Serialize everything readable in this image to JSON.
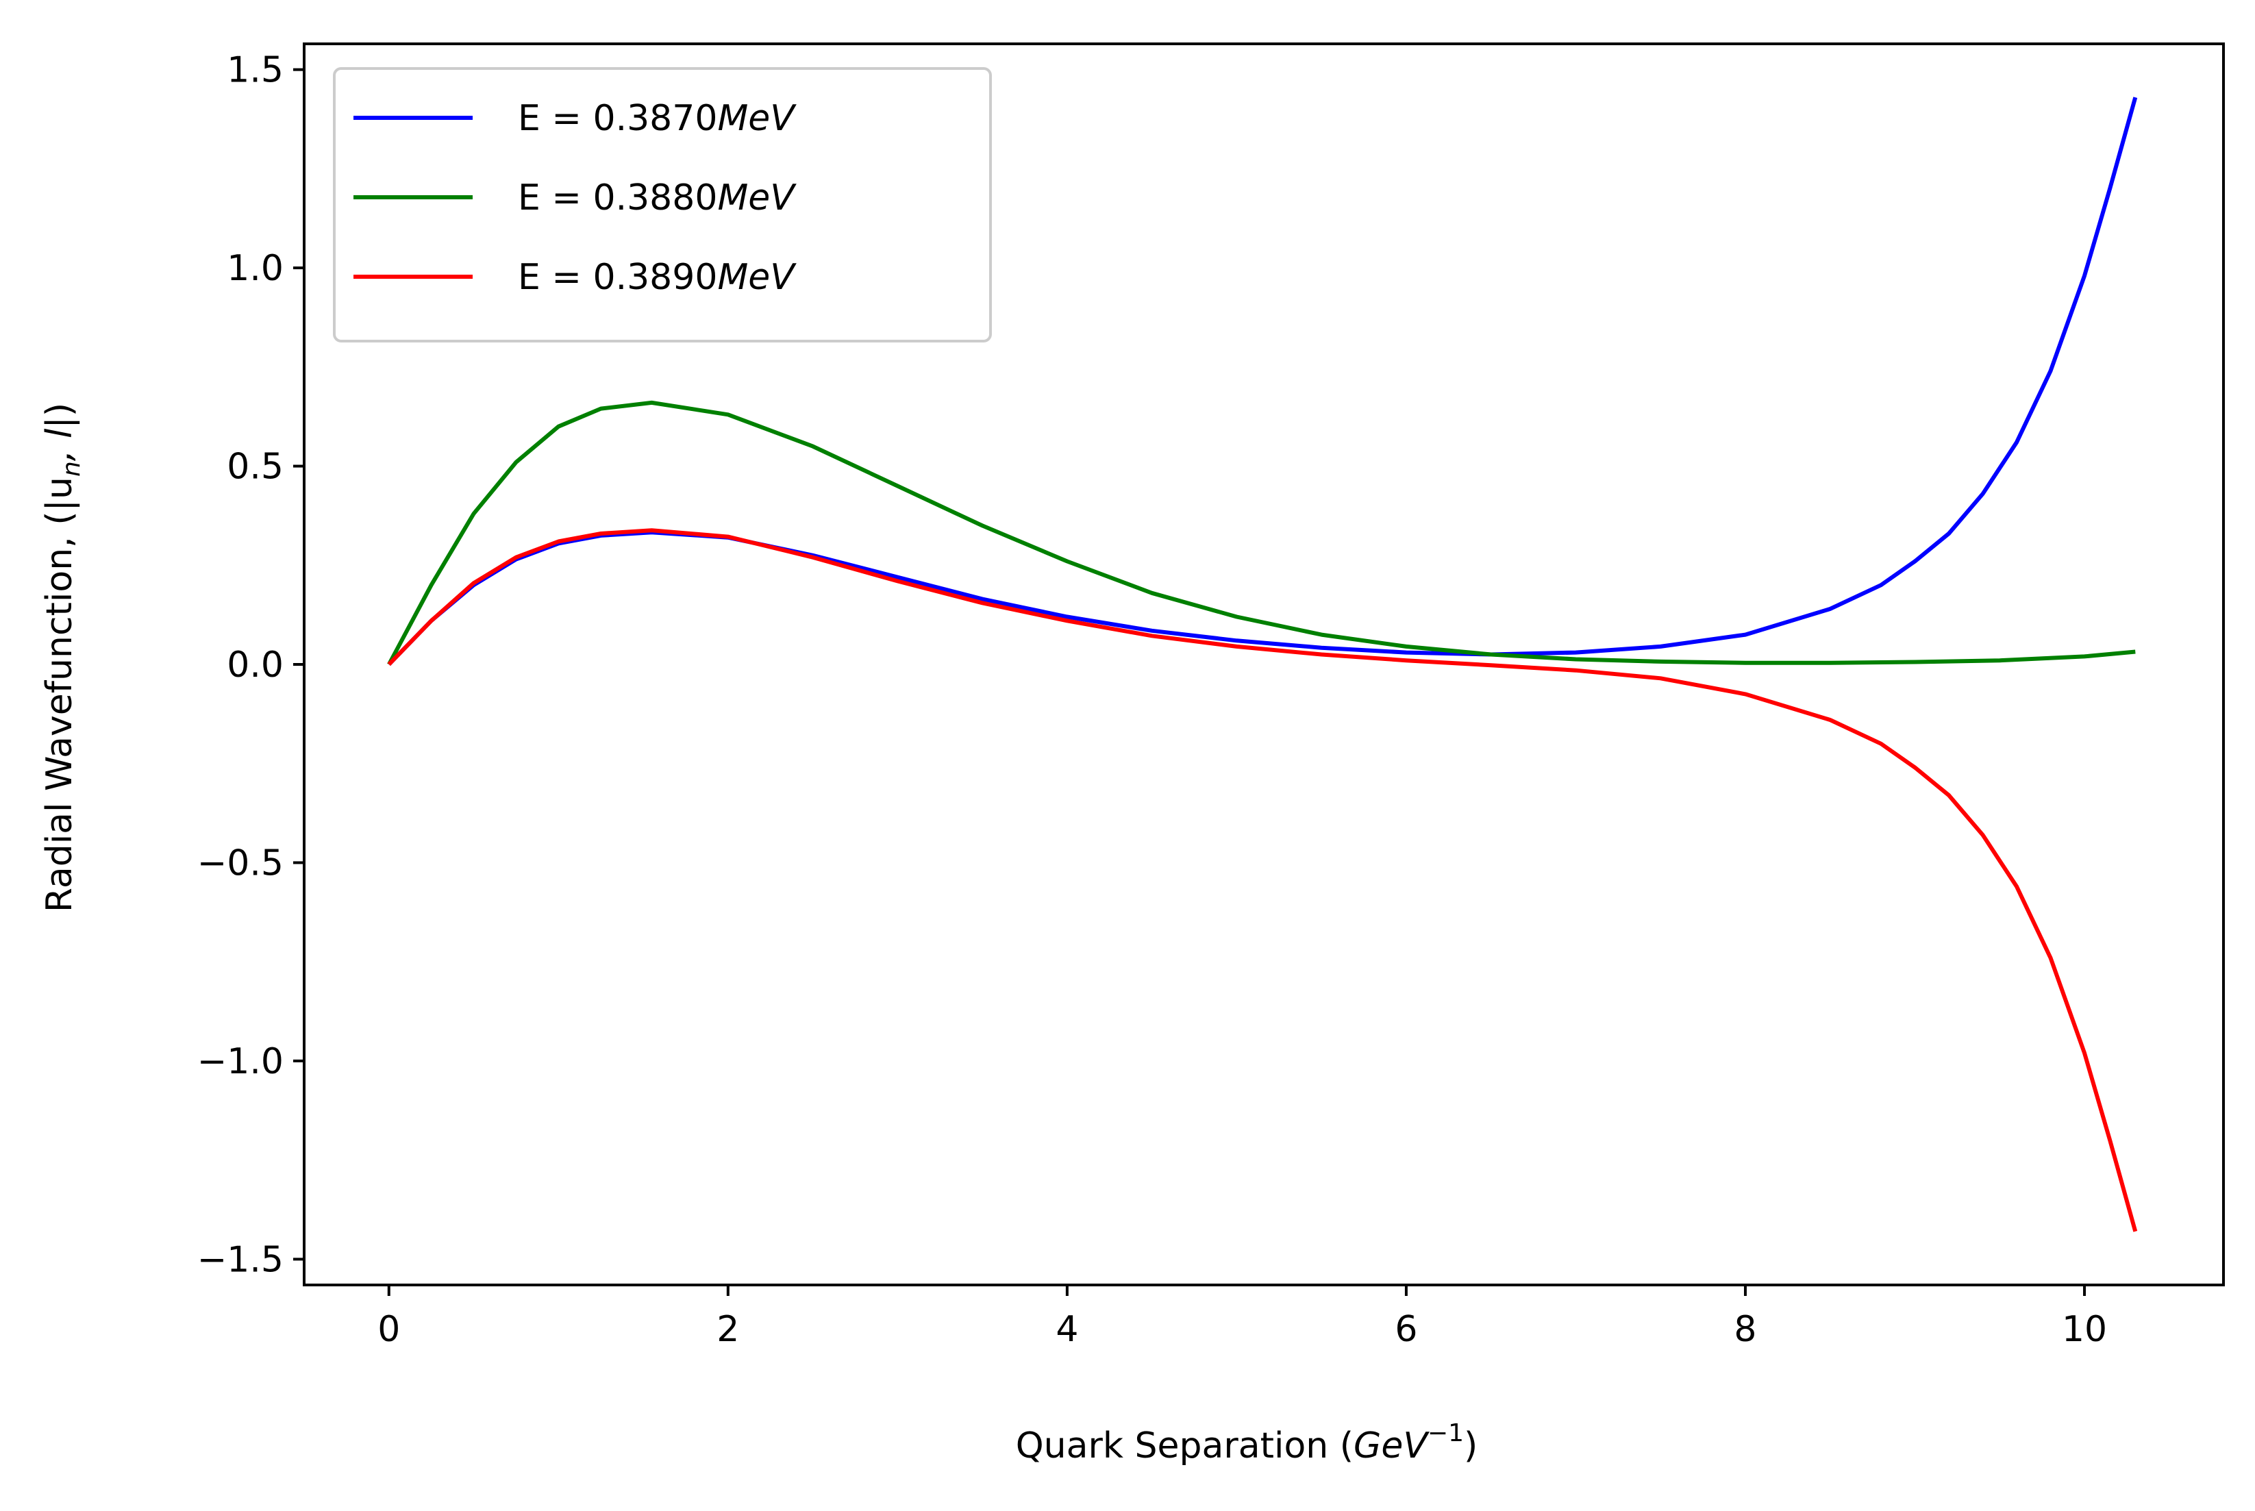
{
  "chart_data": {
    "type": "line",
    "title": "",
    "xlabel": "Quark Separation",
    "xlabel_unit": "GeV",
    "xlabel_unit_exponent": "−1",
    "ylabel": "Radial Wavefunction, (|u",
    "ylabel_sub": "n",
    "ylabel_rest": ", l",
    "ylabel_end": "|)",
    "xlim": [
      -0.5,
      10.82
    ],
    "ylim": [
      -1.565,
      1.565
    ],
    "xticks": [
      0,
      2,
      4,
      6,
      8,
      10
    ],
    "xtick_labels": [
      "0",
      "2",
      "4",
      "6",
      "8",
      "10"
    ],
    "yticks": [
      -1.5,
      -1.0,
      -0.5,
      0.0,
      0.5,
      1.0,
      1.5
    ],
    "ytick_labels": [
      "−1.5",
      "−1.0",
      "−0.5",
      "0.0",
      "0.5",
      "1.0",
      "1.5"
    ],
    "grid": false,
    "legend_position": "top-left",
    "series": [
      {
        "name": "E = 0.3870",
        "unit": "MeV",
        "color": "#0000ff",
        "x": [
          0,
          0.25,
          0.5,
          0.75,
          1.0,
          1.25,
          1.55,
          2.0,
          2.5,
          3.0,
          3.5,
          4.0,
          4.5,
          5.0,
          5.5,
          6.0,
          6.5,
          7.0,
          7.5,
          8.0,
          8.5,
          8.8,
          9.0,
          9.2,
          9.4,
          9.6,
          9.8,
          10.0,
          10.15,
          10.3
        ],
        "y": [
          0.0,
          0.11,
          0.2,
          0.265,
          0.305,
          0.325,
          0.333,
          0.32,
          0.275,
          0.22,
          0.165,
          0.12,
          0.085,
          0.06,
          0.042,
          0.03,
          0.025,
          0.03,
          0.045,
          0.075,
          0.14,
          0.2,
          0.26,
          0.33,
          0.43,
          0.56,
          0.74,
          0.98,
          1.2,
          1.43
        ]
      },
      {
        "name": "E = 0.3880",
        "unit": "MeV",
        "color": "#008000",
        "x": [
          0,
          0.25,
          0.5,
          0.75,
          1.0,
          1.25,
          1.55,
          2.0,
          2.5,
          3.0,
          3.5,
          4.0,
          4.5,
          5.0,
          5.5,
          6.0,
          6.5,
          7.0,
          7.5,
          8.0,
          8.5,
          9.0,
          9.5,
          10.0,
          10.3
        ],
        "y": [
          0.0,
          0.2,
          0.38,
          0.51,
          0.6,
          0.645,
          0.66,
          0.63,
          0.55,
          0.45,
          0.35,
          0.26,
          0.18,
          0.12,
          0.075,
          0.045,
          0.025,
          0.013,
          0.007,
          0.004,
          0.004,
          0.006,
          0.01,
          0.02,
          0.032
        ]
      },
      {
        "name": "E = 0.3890",
        "unit": "MeV",
        "color": "#ff0000",
        "x": [
          0,
          0.25,
          0.5,
          0.75,
          1.0,
          1.25,
          1.55,
          2.0,
          2.5,
          3.0,
          3.5,
          4.0,
          4.5,
          5.0,
          5.5,
          6.0,
          6.5,
          7.0,
          7.5,
          8.0,
          8.5,
          8.8,
          9.0,
          9.2,
          9.4,
          9.6,
          9.8,
          10.0,
          10.15,
          10.3
        ],
        "y": [
          0.0,
          0.11,
          0.205,
          0.27,
          0.31,
          0.33,
          0.338,
          0.322,
          0.27,
          0.21,
          0.155,
          0.11,
          0.072,
          0.045,
          0.025,
          0.01,
          -0.002,
          -0.015,
          -0.035,
          -0.075,
          -0.14,
          -0.2,
          -0.26,
          -0.33,
          -0.43,
          -0.56,
          -0.74,
          -0.98,
          -1.2,
          -1.43
        ]
      }
    ]
  }
}
